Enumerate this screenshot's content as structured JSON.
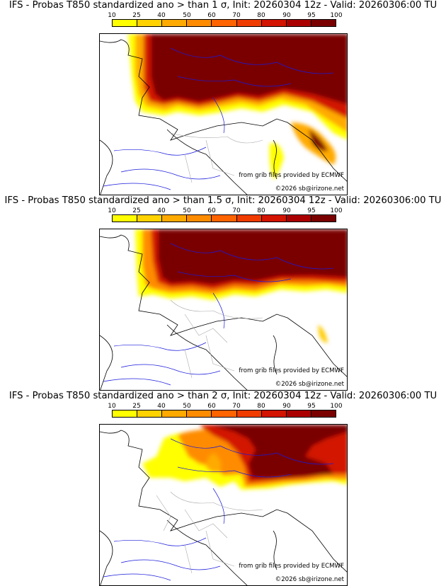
{
  "legend": {
    "ticks": [
      "10",
      "25",
      "40",
      "50",
      "60",
      "70",
      "80",
      "90",
      "95",
      "100"
    ],
    "colors": [
      "#ffff00",
      "#ffd200",
      "#ffaa00",
      "#ff8c00",
      "#ff6400",
      "#f03c00",
      "#d21400",
      "#aa0000",
      "#7a0000"
    ]
  },
  "panels": [
    {
      "title": "IFS - Probas T850  standardized ano > than 1 σ, Init: 20260304 12z - Valid: 20260306:00 TU",
      "credit_source": "from grib files provided by ECMWF",
      "credit_copyright": "©2026 sb@irizone.net"
    },
    {
      "title": "IFS - Probas T850  standardized ano > than 1.5 σ, Init: 20260304 12z - Valid: 20260306:00 TU",
      "credit_source": "from grib files provided by ECMWF",
      "credit_copyright": "©2026 sb@irizone.net"
    },
    {
      "title": "IFS - Probas T850  standardized ano > than 2 σ, Init: 20260304 12z - Valid: 20260306:00 TU",
      "credit_source": "from grib files provided by ECMWF",
      "credit_copyright": "©2026 sb@irizone.net"
    }
  ],
  "map_colors": {
    "coast": "#000000",
    "rivers": "#1a1adc",
    "borders": "#aaaaaa"
  }
}
